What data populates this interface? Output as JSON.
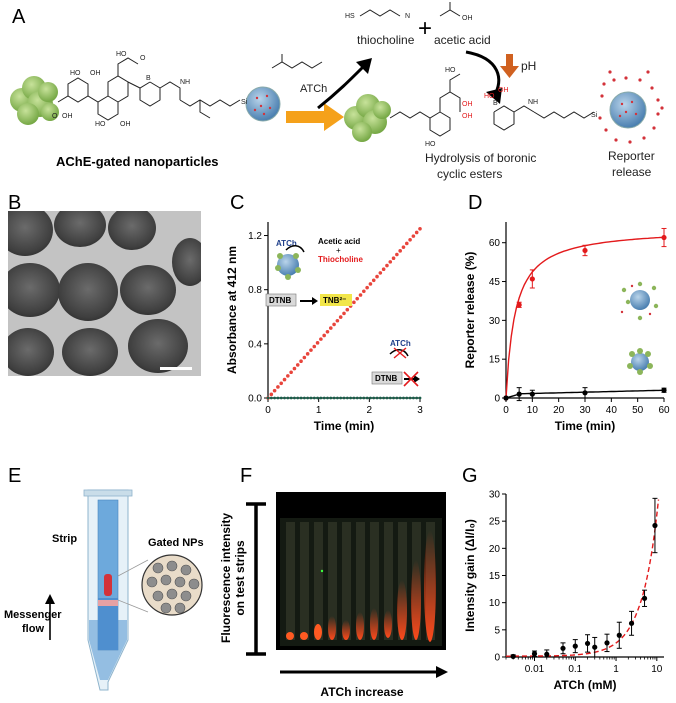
{
  "panels": {
    "A": {
      "letter": "A",
      "labels": {
        "thiocholine": "thiocholine",
        "acetic_acid": "acetic acid",
        "ph": "pH",
        "atch": "ATCh",
        "gated_np": "AChE-gated nanoparticles",
        "hydrolysis": "Hydrolysis of boronic cyclic esters",
        "hydrolysis_line1": "Hydrolysis of boronic",
        "hydrolysis_line2": "cyclic esters",
        "reporter1": "Reporter",
        "reporter2": "release",
        "plus": "+"
      }
    },
    "B": {
      "letter": "B"
    },
    "C": {
      "letter": "C",
      "inset": {
        "atch": "ATCh",
        "acetic": "Acetic acid",
        "plus": "+",
        "thio": "Thiocholine",
        "dtnb": "DTNB",
        "tnb": "TNB²⁻",
        "atch2": "ATCh",
        "dtnb2": "DTNB"
      }
    },
    "D": {
      "letter": "D"
    },
    "E": {
      "letter": "E",
      "strip": "Strip",
      "gated": "Gated NPs",
      "flow1": "Messenger",
      "flow2": "flow"
    },
    "F": {
      "letter": "F",
      "ylabel1": "Fluorescence intensity",
      "ylabel2": "on test strips",
      "xlabel": "ATCh increase"
    },
    "G": {
      "letter": "G"
    }
  },
  "chart_data": [
    {
      "id": "C",
      "type": "line",
      "xlabel": "Time (min)",
      "ylabel": "Absorbance at 412 nm",
      "xlim": [
        0,
        3
      ],
      "ylim": [
        0,
        1.3
      ],
      "xticks": [
        "0",
        "1",
        "2",
        "3"
      ],
      "yticks": [
        "0.0",
        "0.4",
        "0.8",
        "1.2"
      ],
      "series": [
        {
          "color": "#e8453c",
          "x": [
            0,
            3
          ],
          "y": [
            0.0,
            1.25
          ]
        },
        {
          "color": "#1a5e4a",
          "x": [
            0,
            3
          ],
          "y": [
            0.0,
            0.0
          ]
        }
      ]
    },
    {
      "id": "D",
      "type": "line",
      "xlabel": "Time (min)",
      "ylabel": "Reporter release (%)",
      "xlim": [
        0,
        60
      ],
      "ylim": [
        0,
        68
      ],
      "xticks": [
        "0",
        "10",
        "20",
        "30",
        "40",
        "50",
        "60"
      ],
      "yticks": [
        "0",
        "15",
        "30",
        "45",
        "60"
      ],
      "series": [
        {
          "color": "#e31a1c",
          "x": [
            0,
            5,
            10,
            30,
            60
          ],
          "y": [
            0,
            36,
            46,
            57,
            62
          ],
          "err": [
            0,
            1,
            3.5,
            2,
            3.5
          ]
        },
        {
          "color": "#000000",
          "x": [
            0,
            5,
            10,
            30,
            60
          ],
          "y": [
            0,
            1.5,
            1.5,
            2,
            3
          ],
          "err": [
            0,
            2.5,
            1.5,
            2,
            0.8
          ]
        }
      ]
    },
    {
      "id": "G",
      "type": "scatter",
      "xlabel": "ATCh (mM)",
      "ylabel": "Intensity gain (ΔI/I₀)",
      "xscale": "log",
      "xlim": [
        0.002,
        15
      ],
      "ylim": [
        0,
        30
      ],
      "xticks": [
        "0.01",
        "0.1",
        "1",
        "10"
      ],
      "yticks": [
        "0",
        "5",
        "10",
        "15",
        "20",
        "25",
        "30"
      ],
      "points": {
        "x": [
          0.003,
          0.01,
          0.02,
          0.05,
          0.1,
          0.2,
          0.3,
          0.6,
          1.2,
          2.4,
          5,
          9
        ],
        "y": [
          0.1,
          0.6,
          0.5,
          1.6,
          2.0,
          2.5,
          1.8,
          2.6,
          4.0,
          6.2,
          10.8,
          24.2
        ],
        "err": [
          0.3,
          0.5,
          0.8,
          1.0,
          1.2,
          1.6,
          1.8,
          1.6,
          2.4,
          2.2,
          1.5,
          5.0
        ]
      },
      "fit_color": "#e31a1c"
    }
  ]
}
